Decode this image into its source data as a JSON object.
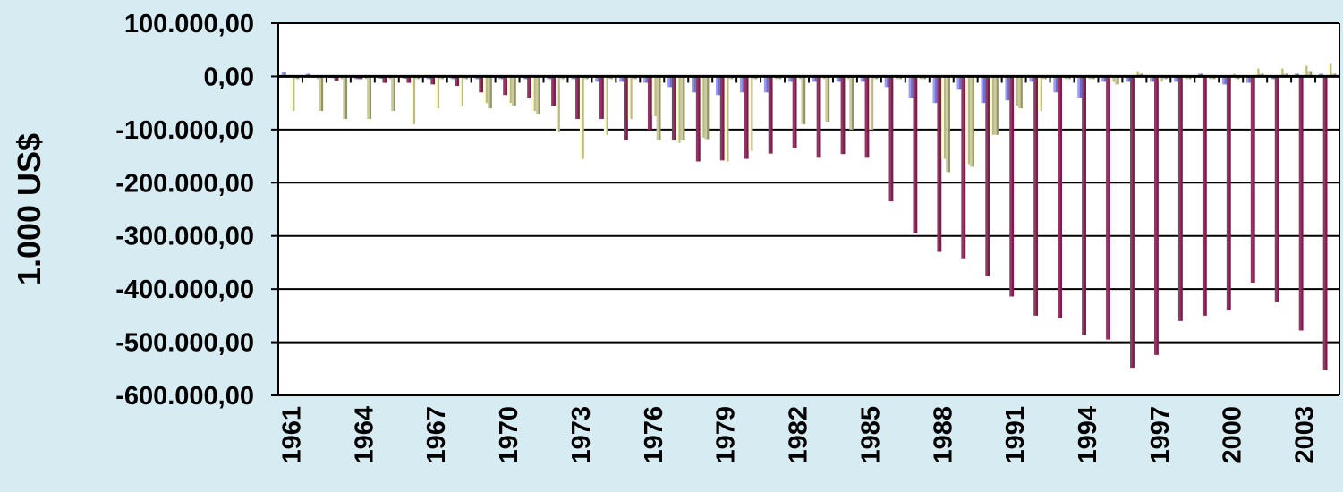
{
  "chart_data": {
    "type": "bar",
    "title": "",
    "xlabel": "",
    "ylabel": "1.000 US$",
    "ylim": [
      -600000,
      100000
    ],
    "yticks": [
      100000,
      0,
      -100000,
      -200000,
      -300000,
      -400000,
      -500000,
      -600000
    ],
    "ytick_labels": [
      "100.000,00",
      "0,00",
      "-100.000,00",
      "-200.000,00",
      "-300.000,00",
      "-400.000,00",
      "-500.000,00",
      "-600.000,00"
    ],
    "grid": true,
    "legend": "none",
    "categories": [
      "1961",
      "1962",
      "1963",
      "1964",
      "1965",
      "1966",
      "1967",
      "1968",
      "1969",
      "1970",
      "1971",
      "1972",
      "1973",
      "1974",
      "1975",
      "1976",
      "1977",
      "1978",
      "1979",
      "1980",
      "1981",
      "1982",
      "1983",
      "1984",
      "1985",
      "1986",
      "1987",
      "1988",
      "1989",
      "1990",
      "1991",
      "1992",
      "1993",
      "1994",
      "1995",
      "1996",
      "1997",
      "1998",
      "1999",
      "2000",
      "2001",
      "2002",
      "2003",
      "2004"
    ],
    "xtick_labels": [
      "1961",
      "1964",
      "1967",
      "1970",
      "1973",
      "1976",
      "1979",
      "1982",
      "1985",
      "1988",
      "1991",
      "1994",
      "1997",
      "2000",
      "2003"
    ],
    "series": [
      {
        "color": "#9999ff",
        "values": [
          8000,
          5000,
          -3000,
          -5000,
          -4000,
          -4000,
          -5000,
          -5000,
          -5000,
          -5000,
          -5000,
          -5000,
          -5000,
          -10000,
          -10000,
          -12000,
          -20000,
          -30000,
          -35000,
          -30000,
          -30000,
          -10000,
          -10000,
          -10000,
          -10000,
          -20000,
          -40000,
          -50000,
          -25000,
          -50000,
          -45000,
          -10000,
          -30000,
          -40000,
          -10000,
          -10000,
          -10000,
          -10000,
          5000,
          -15000,
          -12000,
          -5000,
          5000,
          5000
        ]
      },
      {
        "color": "#993366",
        "values": [
          -2000,
          -2000,
          -8000,
          -5000,
          -12000,
          -12000,
          -15000,
          -18000,
          -30000,
          -35000,
          -40000,
          -55000,
          -80000,
          -80000,
          -120000,
          -100000,
          -120000,
          -160000,
          -158000,
          -155000,
          -145000,
          -135000,
          -153000,
          -146000,
          -153000,
          -235000,
          -295000,
          -330000,
          -342000,
          -376000,
          -414000,
          -450000,
          -455000,
          -486000,
          -495000,
          -548000,
          -524000,
          -460000,
          -450000,
          -440000,
          -388000,
          -425000,
          -478000,
          -553000
        ]
      },
      {
        "color": "#ffffcc",
        "values": [
          -65000,
          -5000,
          -5000,
          -5000,
          -5000,
          -90000,
          -60000,
          -55000,
          -50000,
          -50000,
          -65000,
          -105000,
          -155000,
          -110000,
          -80000,
          -75000,
          -125000,
          -115000,
          -160000,
          -140000,
          -5000,
          -5000,
          -5000,
          -5000,
          -100000,
          -5000,
          -5000,
          -155000,
          -165000,
          -110000,
          -55000,
          -65000,
          -5000,
          -5000,
          -10000,
          10000,
          -10000,
          -5000,
          -5000,
          5000,
          15000,
          15000,
          20000,
          25000
        ]
      },
      {
        "color": "#cccc99",
        "values": [
          -5000,
          -65000,
          -80000,
          -80000,
          -65000,
          -5000,
          -5000,
          -5000,
          -60000,
          -55000,
          -70000,
          -5000,
          -5000,
          -5000,
          -5000,
          -120000,
          -120000,
          -118000,
          -5000,
          -5000,
          -5000,
          -90000,
          -85000,
          -100000,
          -5000,
          -5000,
          -5000,
          -180000,
          -170000,
          -110000,
          -60000,
          -5000,
          -5000,
          -5000,
          -15000,
          5000,
          -5000,
          -5000,
          -5000,
          -5000,
          5000,
          5000,
          10000,
          5000
        ]
      }
    ]
  }
}
